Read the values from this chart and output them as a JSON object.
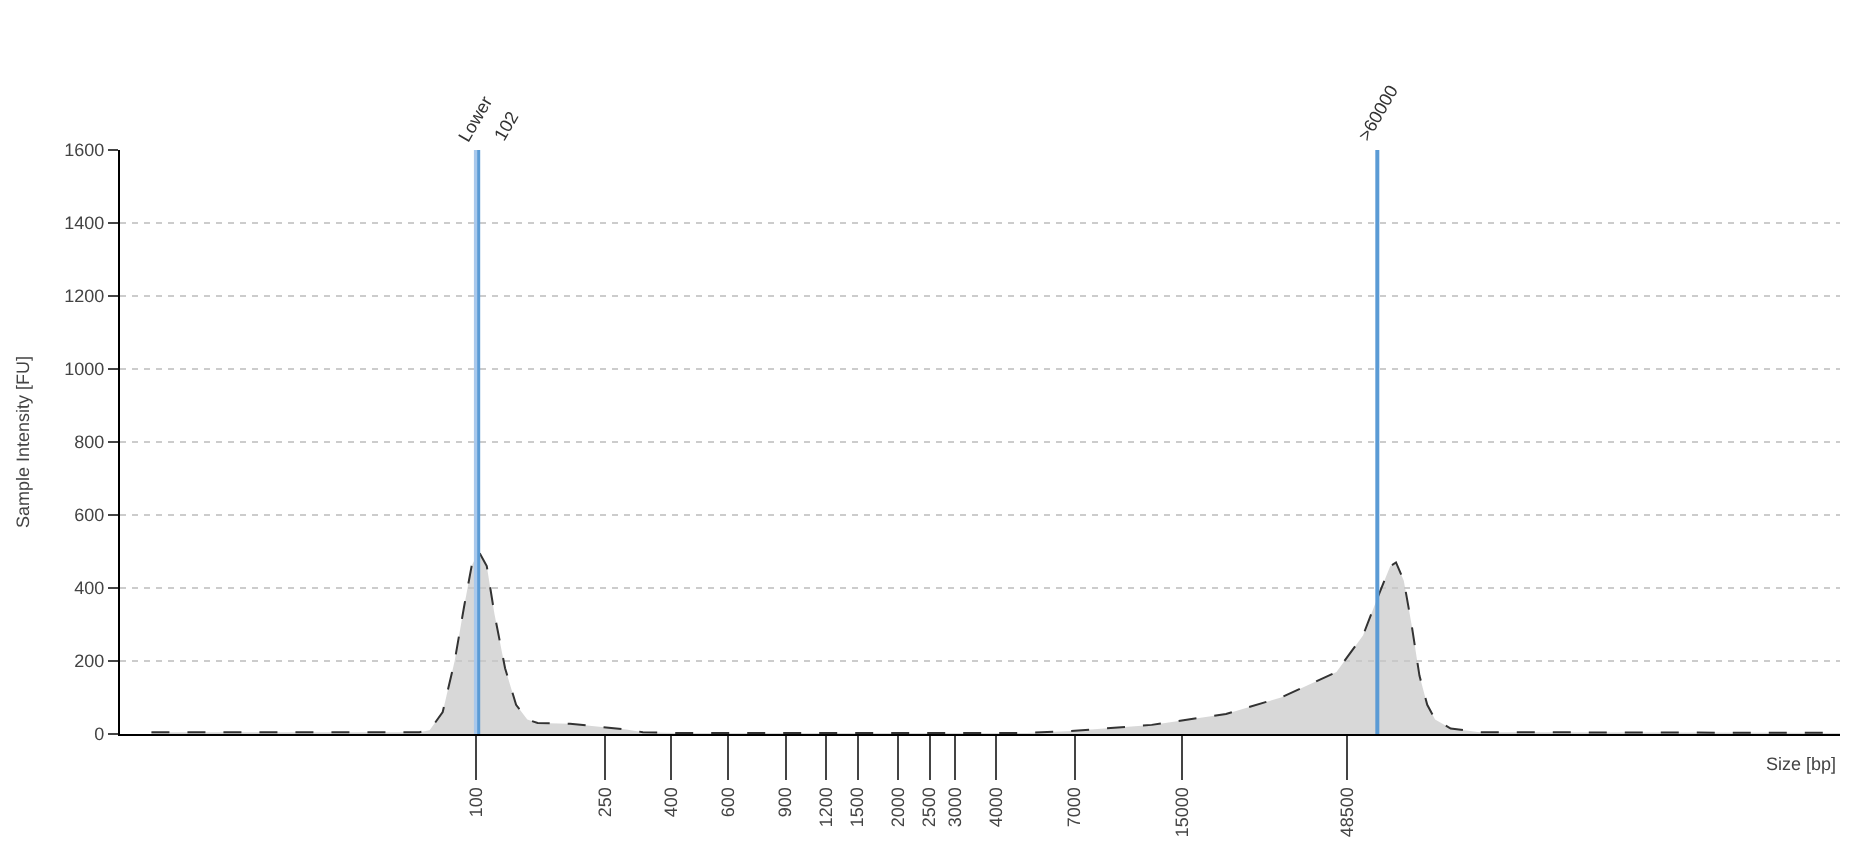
{
  "chart_data": {
    "type": "area",
    "ylabel": "Sample Intensity [FU]",
    "xlabel": "Size [bp]",
    "xlim": [
      8,
      1600000
    ],
    "ylim": [
      0,
      1600
    ],
    "yticks": [
      0,
      200,
      400,
      600,
      800,
      1000,
      1200,
      1400,
      1600
    ],
    "xticks": [
      100,
      250,
      400,
      600,
      900,
      1200,
      1500,
      2000,
      2500,
      3000,
      4000,
      7000,
      15000,
      48500
    ],
    "x": [
      10,
      67,
      72,
      79,
      86,
      92,
      97,
      102,
      108,
      114,
      123,
      133,
      144,
      155,
      195,
      240,
      291,
      327,
      412,
      5000,
      6800,
      12100,
      20500,
      30300,
      44900,
      54200,
      60500,
      65800,
      68500,
      72400,
      76500,
      80900,
      85500,
      90400,
      101000,
      124000,
      1600000
    ],
    "series": [
      {
        "color": "#333333",
        "values": [
          5,
          5,
          10,
          60,
          200,
          350,
          460,
          500,
          460,
          330,
          180,
          80,
          40,
          30,
          28,
          20,
          12,
          5,
          3,
          3,
          8,
          25,
          55,
          100,
          170,
          270,
          380,
          460,
          470,
          420,
          300,
          160,
          80,
          40,
          15,
          5,
          3
        ]
      }
    ],
    "ref_lines": [
      {
        "axis": "x",
        "value": 100,
        "label": "Lower",
        "color": "#a8c8ec"
      },
      {
        "axis": "x",
        "value": 102,
        "label": "102",
        "color": "#5b9bd5"
      },
      {
        "axis": "x",
        "value": 60000,
        "label": ">60000",
        "color": "#5b9bd5"
      }
    ],
    "log": "x",
    "grid": "y"
  }
}
